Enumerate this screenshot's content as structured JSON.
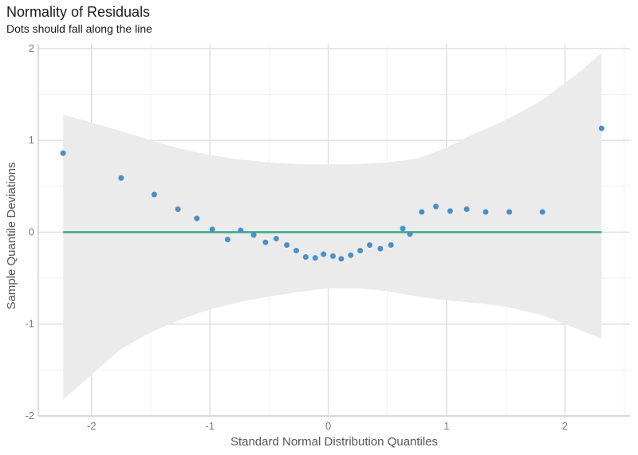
{
  "chart_data": {
    "type": "scatter",
    "title": "Normality of Residuals",
    "subtitle": "Dots should fall along the line",
    "xlabel": "Standard Normal Distribution Quantiles",
    "ylabel": "Sample Quantile Deviations",
    "xlim": [
      -2.45,
      2.55
    ],
    "ylim": [
      -2.0,
      2.05
    ],
    "x_ticks": [
      -2,
      -1,
      0,
      1,
      2
    ],
    "y_ticks": [
      -2,
      -1,
      0,
      1,
      2
    ],
    "x_tick_labels": [
      "-2",
      "-1",
      "0",
      "1",
      "2"
    ],
    "y_tick_labels": [
      "-2",
      "-1",
      "0",
      "1",
      "2"
    ],
    "grid": true,
    "reference_line": {
      "y": 0,
      "x_range": [
        -2.24,
        2.31
      ]
    },
    "confidence_band": {
      "x": [
        -2.24,
        -1.75,
        -1.5,
        -1.25,
        -1.0,
        -0.75,
        -0.5,
        -0.25,
        0.0,
        0.25,
        0.5,
        0.75,
        1.0,
        1.25,
        1.5,
        1.8,
        2.1,
        2.31
      ],
      "upper": [
        1.28,
        1.1,
        1.0,
        0.91,
        0.84,
        0.79,
        0.76,
        0.74,
        0.74,
        0.74,
        0.76,
        0.8,
        0.92,
        1.08,
        1.22,
        1.43,
        1.72,
        1.95
      ],
      "lower": [
        -1.82,
        -1.27,
        -1.09,
        -0.95,
        -0.84,
        -0.76,
        -0.7,
        -0.65,
        -0.61,
        -0.61,
        -0.64,
        -0.7,
        -0.74,
        -0.77,
        -0.81,
        -0.9,
        -1.05,
        -1.16
      ]
    },
    "points": {
      "x": [
        -2.24,
        -1.75,
        -1.47,
        -1.27,
        -1.11,
        -0.98,
        -0.85,
        -0.74,
        -0.63,
        -0.53,
        -0.44,
        -0.35,
        -0.27,
        -0.19,
        -0.11,
        -0.04,
        0.04,
        0.11,
        0.19,
        0.27,
        0.35,
        0.44,
        0.53,
        0.63,
        0.69,
        0.79,
        0.91,
        1.03,
        1.17,
        1.33,
        1.53,
        1.81,
        2.31
      ],
      "y": [
        0.86,
        0.59,
        0.41,
        0.25,
        0.15,
        0.03,
        -0.08,
        0.02,
        -0.03,
        -0.11,
        -0.07,
        -0.14,
        -0.2,
        -0.27,
        -0.28,
        -0.24,
        -0.26,
        -0.29,
        -0.25,
        -0.2,
        -0.14,
        -0.18,
        -0.14,
        0.04,
        -0.02,
        0.22,
        0.28,
        0.23,
        0.25,
        0.22,
        0.22,
        0.22,
        1.13
      ]
    },
    "colors": {
      "points": "#4a90c4",
      "reference_line": "#3aab86",
      "band": "#ebebeb",
      "grid_major": "#e0e0e0",
      "grid_minor": "#f0f0f0",
      "axis": "#d0d0d0"
    }
  }
}
